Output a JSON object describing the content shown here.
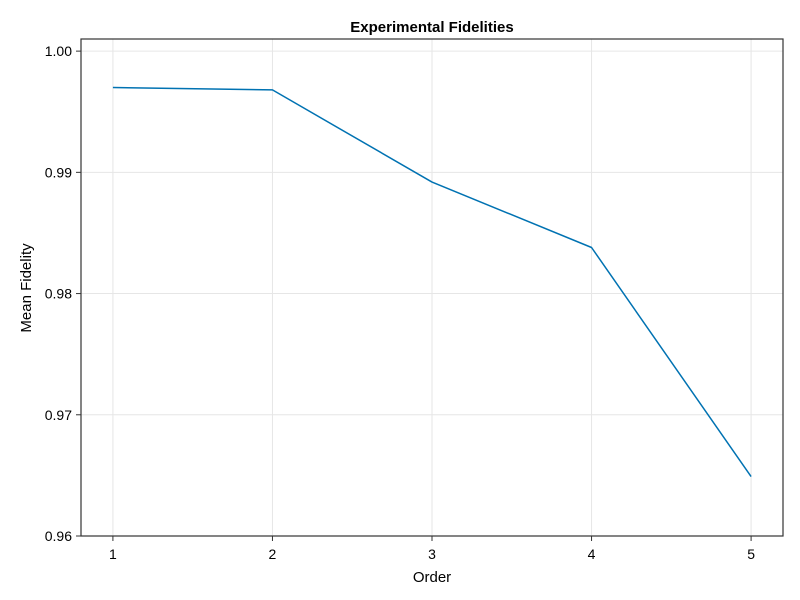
{
  "chart_data": {
    "type": "line",
    "title": "Experimental Fidelities",
    "xlabel": "Order",
    "ylabel": "Mean Fidelity",
    "x": [
      1,
      2,
      3,
      4,
      5
    ],
    "series": [
      {
        "values": [
          0.997,
          0.9968,
          0.9892,
          0.9838,
          0.9649
        ],
        "color": "#0072b2"
      }
    ],
    "xlim": [
      0.8,
      5.2
    ],
    "ylim": [
      0.96,
      1.001
    ],
    "xticks": [
      1,
      2,
      3,
      4,
      5
    ],
    "xtick_labels": [
      "1",
      "2",
      "3",
      "4",
      "5"
    ],
    "yticks": [
      0.96,
      0.97,
      0.98,
      0.99,
      1.0
    ],
    "ytick_labels": [
      "0.96",
      "0.97",
      "0.98",
      "0.99",
      "1.00"
    ],
    "grid": true,
    "legend": "none"
  }
}
